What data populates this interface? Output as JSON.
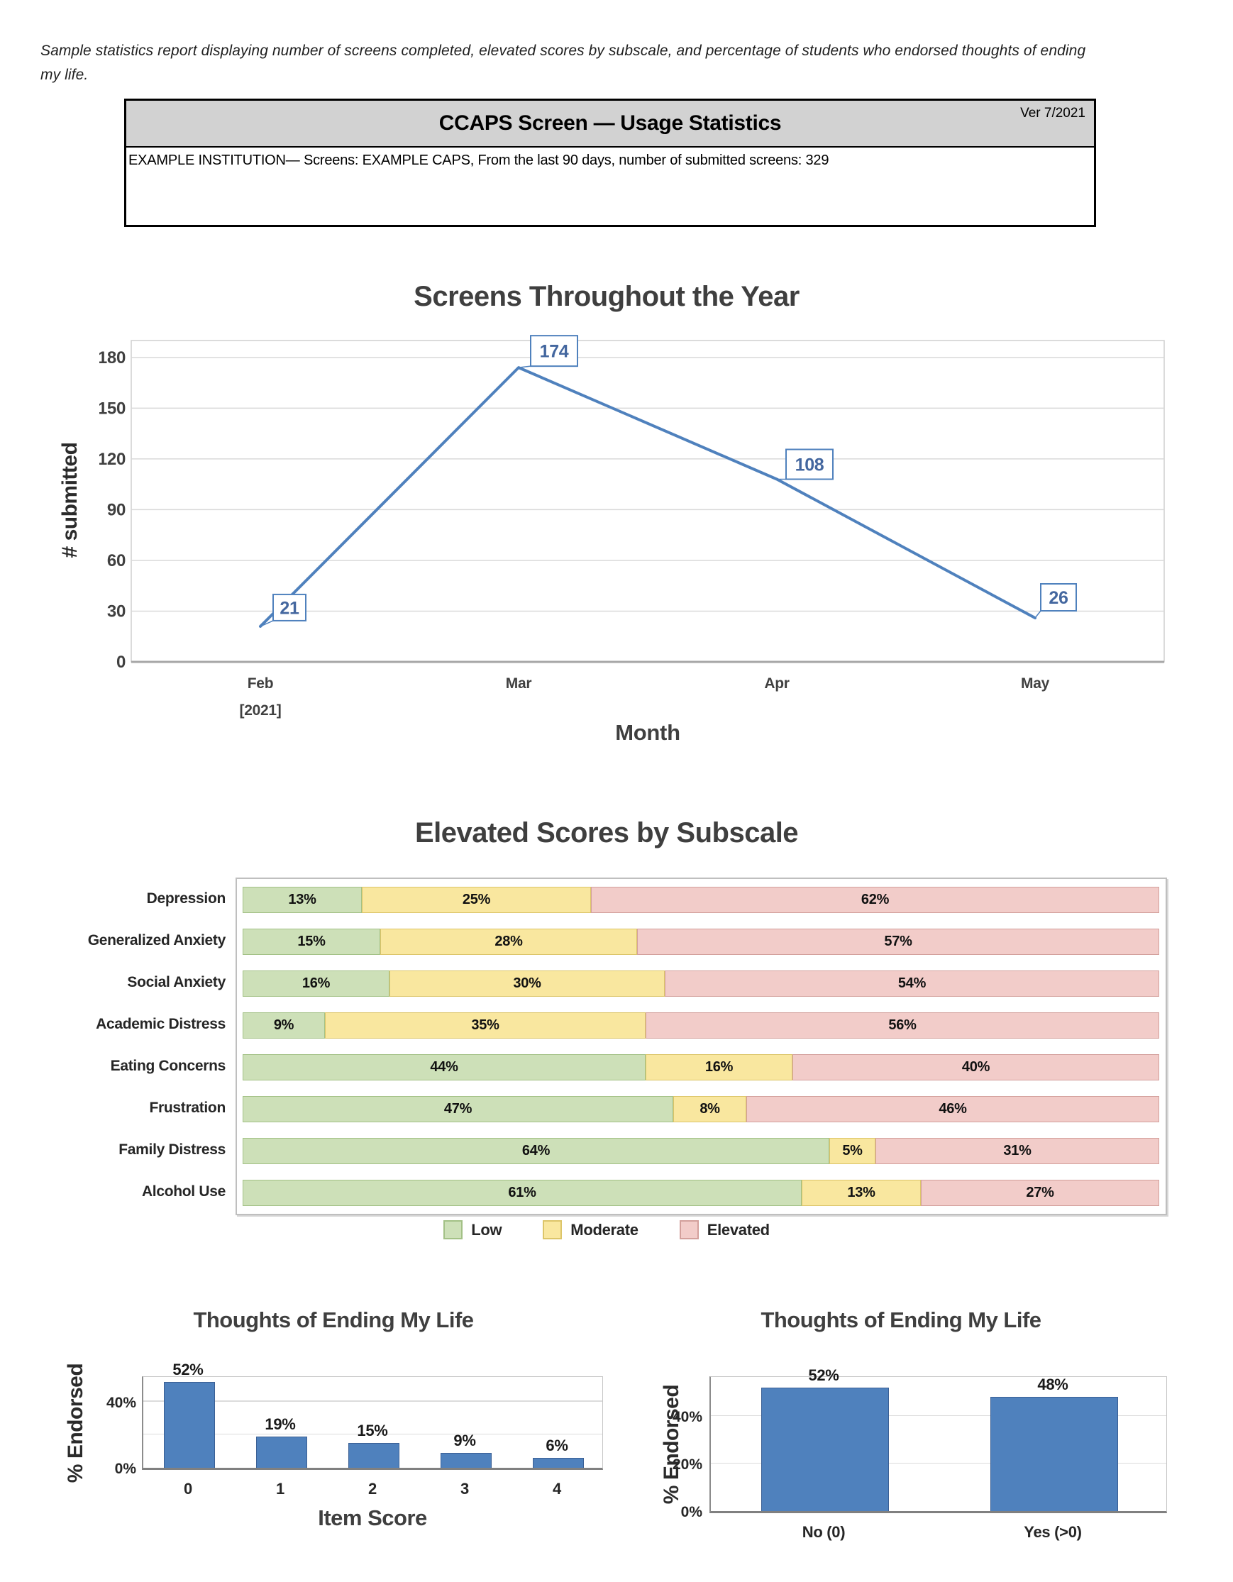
{
  "page": {
    "intro": "Sample statistics report displaying number of screens completed, elevated scores by subscale, and percentage of students who endorsed thoughts of ending my life.",
    "header": {
      "title": "CCAPS Screen — Usage Statistics",
      "version": "Ver 7/2021",
      "subtitle": "EXAMPLE INSTITUTION— Screens: EXAMPLE CAPS, From the last 90 days, number of submitted screens: 329"
    }
  },
  "colors": {
    "accent_blue": "#4f81bd",
    "label_blue": "#44679f",
    "bar_border_blue": "#3a5f94",
    "low": "#cde0b8",
    "low_border": "#a3c186",
    "moderate": "#f9e79f",
    "moderate_border": "#dcc569",
    "elevated": "#f2ccc9",
    "elevated_border": "#d3a09c",
    "grid": "#d9d9d9",
    "axis": "#a6a6a6",
    "title_text": "#3f3f3f"
  },
  "chart_data": [
    {
      "id": "screens-by-month",
      "type": "line",
      "title": "Screens Throughout the Year",
      "xlabel": "Month",
      "ylabel": "# submitted",
      "categories": [
        "Feb",
        "Mar",
        "Apr",
        "May"
      ],
      "category_sublabels": [
        "[2021]",
        "",
        "",
        ""
      ],
      "values": [
        21,
        174,
        108,
        26
      ],
      "data_labels": [
        "21",
        "174",
        "108",
        "26"
      ],
      "ylim": [
        0,
        190
      ],
      "yticks": [
        0,
        30,
        60,
        90,
        120,
        150,
        180
      ],
      "grid": "on",
      "legend_position": "none"
    },
    {
      "id": "elevated-by-subscale",
      "type": "bar",
      "orientation": "horizontal-stacked",
      "title": "Elevated Scores by Subscale",
      "unit": "%",
      "categories": [
        "Depression",
        "Generalized Anxiety",
        "Social Anxiety",
        "Academic Distress",
        "Eating Concerns",
        "Frustration",
        "Family Distress",
        "Alcohol Use"
      ],
      "series": [
        {
          "name": "Low",
          "values": [
            13,
            15,
            16,
            9,
            44,
            47,
            64,
            61
          ]
        },
        {
          "name": "Moderate",
          "values": [
            25,
            28,
            30,
            35,
            16,
            8,
            5,
            13
          ]
        },
        {
          "name": "Elevated",
          "values": [
            62,
            57,
            54,
            56,
            40,
            46,
            31,
            27
          ]
        }
      ],
      "xlim": [
        0,
        100
      ],
      "legend_position": "bottom"
    },
    {
      "id": "thoughts-item-score",
      "type": "bar",
      "title": "Thoughts of Ending My Life",
      "xlabel": "Item Score",
      "ylabel": "% Endorsed",
      "unit": "%",
      "categories": [
        "0",
        "1",
        "2",
        "3",
        "4"
      ],
      "values": [
        52,
        19,
        15,
        9,
        6
      ],
      "data_labels": [
        "52%",
        "19%",
        "15%",
        "9%",
        "6%"
      ],
      "ylim": [
        0,
        57
      ],
      "yticks": [
        0,
        40
      ],
      "ytick_labels": [
        "0%",
        "40%"
      ],
      "gridlines": [
        20,
        40
      ],
      "legend_position": "none"
    },
    {
      "id": "thoughts-yes-no",
      "type": "bar",
      "title": "Thoughts of Ending My Life",
      "xlabel": "",
      "ylabel": "% Endorsed",
      "unit": "%",
      "categories": [
        "No (0)",
        "Yes (>0)"
      ],
      "values": [
        52,
        48
      ],
      "data_labels": [
        "52%",
        "48%"
      ],
      "ylim": [
        0,
        57
      ],
      "yticks": [
        0,
        20,
        40
      ],
      "ytick_labels": [
        "0%",
        "20%",
        "40%"
      ],
      "gridlines": [
        20,
        40
      ],
      "legend_position": "none"
    }
  ]
}
